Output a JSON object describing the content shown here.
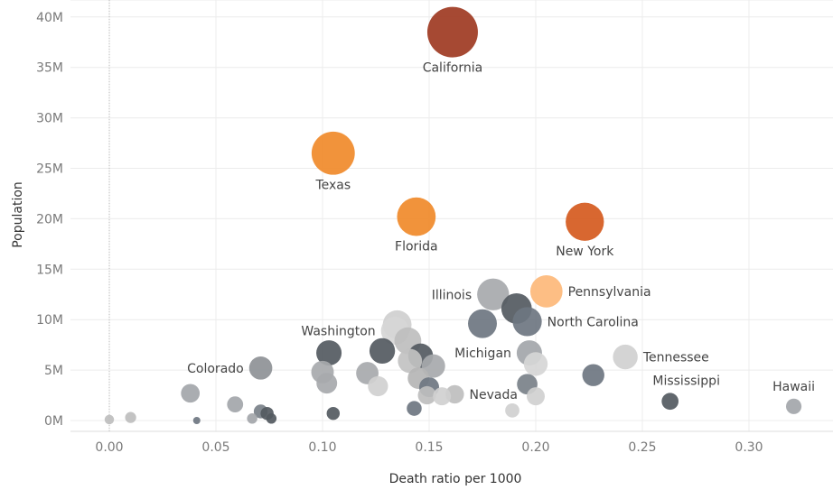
{
  "chart_data": {
    "type": "scatter",
    "title": "",
    "xlabel": "Death ratio per 1000",
    "ylabel": "Population",
    "xlim": [
      -0.018,
      0.34
    ],
    "ylim": [
      -1000000,
      42000000
    ],
    "xticks": [
      0.0,
      0.05,
      0.1,
      0.15,
      0.2,
      0.25,
      0.3
    ],
    "xtick_labels": [
      "0.00",
      "0.05",
      "0.10",
      "0.15",
      "0.20",
      "0.25",
      "0.30"
    ],
    "yticks": [
      0,
      5000000,
      10000000,
      15000000,
      20000000,
      25000000,
      30000000,
      35000000,
      40000000
    ],
    "ytick_labels": [
      "0M",
      "5M",
      "10M",
      "15M",
      "20M",
      "25M",
      "30M",
      "35M",
      "40M"
    ],
    "grid": true,
    "size_encodes": "population",
    "points": [
      {
        "x": 0.161,
        "y": 38500000,
        "color": "#9E3A22",
        "label": "California",
        "label_pos": "below"
      },
      {
        "x": 0.105,
        "y": 26500000,
        "color": "#F08A2A",
        "label": "Texas",
        "label_pos": "below"
      },
      {
        "x": 0.144,
        "y": 20200000,
        "color": "#F08A2A",
        "label": "Florida",
        "label_pos": "below"
      },
      {
        "x": 0.223,
        "y": 19700000,
        "color": "#D55A1E",
        "label": "New York",
        "label_pos": "below"
      },
      {
        "x": 0.205,
        "y": 12800000,
        "color": "#FDB97A",
        "label": "Pennsylvania",
        "label_pos": "right"
      },
      {
        "x": 0.18,
        "y": 12500000,
        "color": "#A7A9AC",
        "label": "Illinois",
        "label_pos": "left"
      },
      {
        "x": 0.191,
        "y": 11100000,
        "color": "#545A61",
        "label": "",
        "label_pos": ""
      },
      {
        "x": 0.196,
        "y": 9800000,
        "color": "#6E7681",
        "label": "North Carolina",
        "label_pos": "right"
      },
      {
        "x": 0.175,
        "y": 9600000,
        "color": "#6E7681",
        "label": "",
        "label_pos": ""
      },
      {
        "x": 0.135,
        "y": 9500000,
        "color": "#CFCFCF",
        "label": "",
        "label_pos": ""
      },
      {
        "x": 0.134,
        "y": 8900000,
        "color": "#D6D6D6",
        "label": "Washington",
        "label_pos": "left"
      },
      {
        "x": 0.14,
        "y": 7900000,
        "color": "#BEBEBE",
        "label": "",
        "label_pos": ""
      },
      {
        "x": 0.197,
        "y": 6700000,
        "color": "#A3A6AA",
        "label": "Michigan",
        "label_pos": "left"
      },
      {
        "x": 0.128,
        "y": 6900000,
        "color": "#545A61",
        "label": "",
        "label_pos": ""
      },
      {
        "x": 0.103,
        "y": 6700000,
        "color": "#545A61",
        "label": "",
        "label_pos": ""
      },
      {
        "x": 0.146,
        "y": 6400000,
        "color": "#545A61",
        "label": "",
        "label_pos": ""
      },
      {
        "x": 0.242,
        "y": 6300000,
        "color": "#D0D0D0",
        "label": "Tennessee",
        "label_pos": "right"
      },
      {
        "x": 0.141,
        "y": 5900000,
        "color": "#C2C2C2",
        "label": "",
        "label_pos": ""
      },
      {
        "x": 0.2,
        "y": 5600000,
        "color": "#D6D6D6",
        "label": "",
        "label_pos": ""
      },
      {
        "x": 0.152,
        "y": 5400000,
        "color": "#A7A9AC",
        "label": "",
        "label_pos": ""
      },
      {
        "x": 0.071,
        "y": 5200000,
        "color": "#8E9196",
        "label": "Colorado",
        "label_pos": "left"
      },
      {
        "x": 0.1,
        "y": 4800000,
        "color": "#A7A9AC",
        "label": "",
        "label_pos": ""
      },
      {
        "x": 0.121,
        "y": 4700000,
        "color": "#A7A9AC",
        "label": "",
        "label_pos": ""
      },
      {
        "x": 0.227,
        "y": 4500000,
        "color": "#6E7681",
        "label": "",
        "label_pos": ""
      },
      {
        "x": 0.145,
        "y": 4200000,
        "color": "#B5B5B5",
        "label": "",
        "label_pos": ""
      },
      {
        "x": 0.102,
        "y": 3700000,
        "color": "#A7A9AC",
        "label": "",
        "label_pos": ""
      },
      {
        "x": 0.196,
        "y": 3600000,
        "color": "#7A8189",
        "label": "",
        "label_pos": ""
      },
      {
        "x": 0.126,
        "y": 3400000,
        "color": "#D0D0D0",
        "label": "",
        "label_pos": ""
      },
      {
        "x": 0.15,
        "y": 3300000,
        "color": "#6E7681",
        "label": "",
        "label_pos": ""
      },
      {
        "x": 0.038,
        "y": 2700000,
        "color": "#A3A6AA",
        "label": "",
        "label_pos": ""
      },
      {
        "x": 0.149,
        "y": 2500000,
        "color": "#BEBEBE",
        "label": "",
        "label_pos": ""
      },
      {
        "x": 0.162,
        "y": 2600000,
        "color": "#BEBEBE",
        "label": "Nevada",
        "label_pos": "right"
      },
      {
        "x": 0.156,
        "y": 2400000,
        "color": "#D0D0D0",
        "label": "",
        "label_pos": ""
      },
      {
        "x": 0.2,
        "y": 2400000,
        "color": "#D0D0D0",
        "label": "",
        "label_pos": ""
      },
      {
        "x": 0.263,
        "y": 1900000,
        "color": "#545A61",
        "label": "Mississippi",
        "label_pos": "above-right"
      },
      {
        "x": 0.059,
        "y": 1600000,
        "color": "#A3A6AA",
        "label": "",
        "label_pos": ""
      },
      {
        "x": 0.143,
        "y": 1200000,
        "color": "#6E7681",
        "label": "",
        "label_pos": ""
      },
      {
        "x": 0.189,
        "y": 1000000,
        "color": "#D0D0D0",
        "label": "",
        "label_pos": ""
      },
      {
        "x": 0.071,
        "y": 900000,
        "color": "#7A8189",
        "label": "",
        "label_pos": ""
      },
      {
        "x": 0.074,
        "y": 700000,
        "color": "#545A61",
        "label": "",
        "label_pos": ""
      },
      {
        "x": 0.105,
        "y": 700000,
        "color": "#545A61",
        "label": "",
        "label_pos": ""
      },
      {
        "x": 0.321,
        "y": 1400000,
        "color": "#A3A6AA",
        "label": "Hawaii",
        "label_pos": "above"
      },
      {
        "x": 0.01,
        "y": 300000,
        "color": "#BEBEBE",
        "label": "",
        "label_pos": ""
      },
      {
        "x": 0.067,
        "y": 200000,
        "color": "#A3A6AA",
        "label": "",
        "label_pos": ""
      },
      {
        "x": 0.076,
        "y": 200000,
        "color": "#545A61",
        "label": "",
        "label_pos": ""
      },
      {
        "x": 0.0,
        "y": 100000,
        "color": "#BEBEBE",
        "label": "",
        "label_pos": ""
      },
      {
        "x": 0.041,
        "y": 0,
        "color": "#6E7681",
        "label": "",
        "label_pos": ""
      }
    ]
  }
}
